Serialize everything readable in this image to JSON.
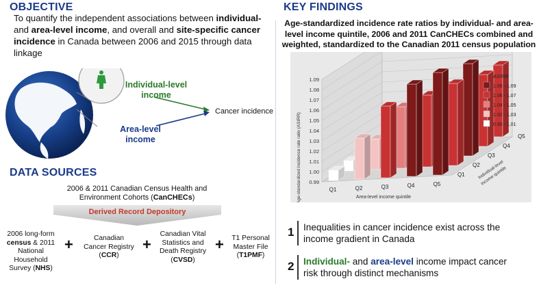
{
  "objective": {
    "heading": "OBJECTIVE",
    "line1_a": "To quantify the independent associations between ",
    "line1_b": "individual-",
    "line2_a": "and ",
    "line2_b": "area-level income",
    "line2_c": ", and overall and ",
    "line2_d": "site-specific cancer",
    "line3_a": "incidence",
    "line3_b": " in Canada between 2006 and 2015 through data",
    "line4": "linkage"
  },
  "diagram": {
    "individual_label_1": "Individual-level",
    "individual_label_2": "income",
    "area_label_1": "Area-level",
    "area_label_2": "income",
    "outcome_label": "Cancer incidence",
    "colors": {
      "individual": "#2a7a2a",
      "area": "#1a3a8a",
      "person": "#2e9a3e"
    }
  },
  "data_sources": {
    "heading": "DATA SOURCES",
    "cohort_line1": "2006 & 2011 Canadian Census Health and",
    "cohort_line2_a": "Environment Cohorts (",
    "cohort_line2_b": "CanCHECs",
    "cohort_line2_c": ")",
    "depository": "Derived Record Depository",
    "sources": [
      {
        "l1": "2006 long-form",
        "l2a": "census",
        "l2b": " & 2011",
        "l3": "National Household",
        "l4a": "Survey (",
        "l4b": "NHS",
        "l4c": ")"
      },
      {
        "l1": "Canadian",
        "l2": "Cancer Registry",
        "l3a": "(",
        "l3b": "CCR",
        "l3c": ")"
      },
      {
        "l1": "Canadian Vital",
        "l2": "Statistics and",
        "l3": "Death Registry",
        "l4a": "(",
        "l4b": "CVSD",
        "l4c": ")"
      },
      {
        "l1": "T1 Personal",
        "l2": "Master File",
        "l3a": "(",
        "l3b": "T1PMF",
        "l3c": ")"
      }
    ],
    "plus": "+"
  },
  "key_findings": {
    "heading": "KEY FINDINGS",
    "title_1": "Age-standardized incidence rate ratios by individual- and area-",
    "title_2": "level income quintile, 2006 and 2011 CanCHECs combined and",
    "title_3": "weighted, standardized to the Canadian 2011 census population",
    "findings": [
      {
        "num": "1",
        "line1": "Inequalities in cancer incidence exist across the",
        "line2": "income gradient in Canada"
      },
      {
        "num": "2",
        "a": "Individual-",
        "b": " and ",
        "c": "area-level",
        "d": " income impact cancer",
        "line2": "risk through distinct mechanisms"
      }
    ]
  },
  "chart_data": {
    "type": "bar3d",
    "ylabel": "Age-standardized incidence rate ratio (ASIRR)",
    "xlabel": "Area-level income quintile",
    "zlabel_1": "Individual-level",
    "zlabel_2": "income quintile",
    "y_ticks": [
      "0.99",
      "1.00",
      "1.01",
      "1.02",
      "1.03",
      "1.04",
      "1.05",
      "1.06",
      "1.07",
      "1.08",
      "1.09"
    ],
    "ylim": [
      0.99,
      1.09
    ],
    "area_quintiles": [
      "Q1",
      "Q2",
      "Q3",
      "Q4",
      "Q5"
    ],
    "individual_quintiles": [
      "Q1",
      "Q2",
      "Q3",
      "Q4",
      "Q5"
    ],
    "values": [
      [
        1.0,
        1.03,
        1.06,
        1.08,
        1.09
      ],
      [
        1.0,
        1.02,
        1.05,
        1.06,
        1.07
      ],
      [
        1.0,
        1.02,
        1.04,
        1.06,
        1.08
      ],
      [
        1.0,
        1.02,
        1.03,
        1.05,
        1.06
      ],
      [
        1.0,
        1.01,
        1.03,
        1.04,
        1.06
      ]
    ],
    "legend": {
      "title": "ASIRR",
      "entries": [
        {
          "label": "1.08 - 1.09",
          "color": "#7d1a1a"
        },
        {
          "label": "1.06 - 1.07",
          "color": "#c93232"
        },
        {
          "label": "1.04 - 1.05",
          "color": "#e57f7f"
        },
        {
          "label": "1.02 - 1.03",
          "color": "#f4c4c4"
        },
        {
          "label": "0.99 - 1.01",
          "color": "#ffffff"
        }
      ]
    }
  }
}
